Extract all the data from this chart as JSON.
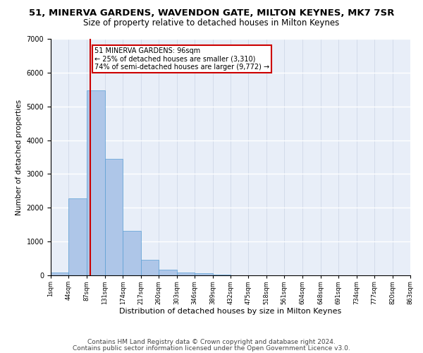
{
  "title": "51, MINERVA GARDENS, WAVENDON GATE, MILTON KEYNES, MK7 7SR",
  "subtitle": "Size of property relative to detached houses in Milton Keynes",
  "xlabel": "Distribution of detached houses by size in Milton Keynes",
  "ylabel": "Number of detached properties",
  "bar_color": "#aec6e8",
  "bar_edge_color": "#5a9fd4",
  "background_color": "#e8eef8",
  "grid_color": "#ffffff",
  "annotation_text": "51 MINERVA GARDENS: 96sqm\n← 25% of detached houses are smaller (3,310)\n74% of semi-detached houses are larger (9,772) →",
  "vline_x": 96,
  "vline_color": "#cc0000",
  "annotation_box_edge_color": "#cc0000",
  "ylim": [
    0,
    7000
  ],
  "yticks": [
    0,
    1000,
    2000,
    3000,
    4000,
    5000,
    6000,
    7000
  ],
  "bin_edges": [
    1,
    44,
    87,
    131,
    174,
    217,
    260,
    303,
    346,
    389,
    432,
    475,
    518,
    561,
    604,
    648,
    691,
    734,
    777,
    820,
    863
  ],
  "bin_heights": [
    75,
    2280,
    5470,
    3450,
    1310,
    470,
    160,
    90,
    65,
    30,
    0,
    0,
    0,
    0,
    0,
    0,
    0,
    0,
    0,
    0
  ],
  "footer_line1": "Contains HM Land Registry data © Crown copyright and database right 2024.",
  "footer_line2": "Contains public sector information licensed under the Open Government Licence v3.0.",
  "title_fontsize": 9.5,
  "subtitle_fontsize": 8.5,
  "ylabel_fontsize": 7.5,
  "xlabel_fontsize": 8,
  "footer_fontsize": 6.5,
  "tick_fontsize": 6,
  "ytick_fontsize": 7
}
